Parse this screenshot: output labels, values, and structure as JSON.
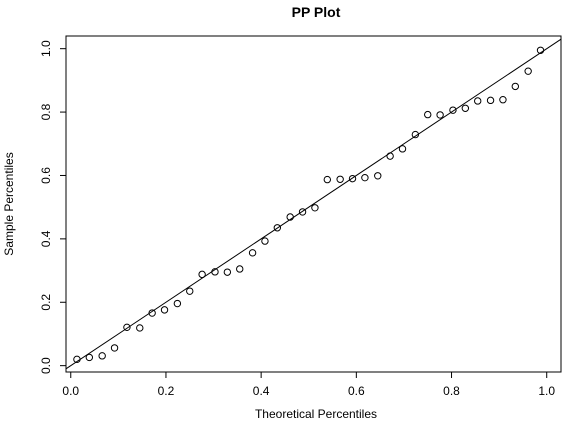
{
  "chart_data": {
    "type": "scatter",
    "title": "PP Plot",
    "xlabel": "Theoretical Percentiles",
    "ylabel": "Sample Percentiles",
    "xlim": [
      -0.01,
      1.03
    ],
    "ylim": [
      -0.02,
      1.04
    ],
    "x_ticks": [
      "0.0",
      "0.2",
      "0.4",
      "0.6",
      "0.8",
      "1.0"
    ],
    "y_ticks": [
      "0.0",
      "0.2",
      "0.4",
      "0.6",
      "0.8",
      "1.0"
    ],
    "grid": false,
    "reference_line": {
      "slope": 1.0,
      "intercept": 0.0
    },
    "points": [
      {
        "x": 0.013,
        "y": 0.02
      },
      {
        "x": 0.039,
        "y": 0.026
      },
      {
        "x": 0.066,
        "y": 0.031
      },
      {
        "x": 0.092,
        "y": 0.056
      },
      {
        "x": 0.118,
        "y": 0.121
      },
      {
        "x": 0.145,
        "y": 0.119
      },
      {
        "x": 0.171,
        "y": 0.166
      },
      {
        "x": 0.197,
        "y": 0.176
      },
      {
        "x": 0.224,
        "y": 0.196
      },
      {
        "x": 0.25,
        "y": 0.235
      },
      {
        "x": 0.276,
        "y": 0.288
      },
      {
        "x": 0.303,
        "y": 0.296
      },
      {
        "x": 0.329,
        "y": 0.295
      },
      {
        "x": 0.355,
        "y": 0.305
      },
      {
        "x": 0.382,
        "y": 0.356
      },
      {
        "x": 0.408,
        "y": 0.393
      },
      {
        "x": 0.434,
        "y": 0.435
      },
      {
        "x": 0.461,
        "y": 0.469
      },
      {
        "x": 0.487,
        "y": 0.485
      },
      {
        "x": 0.513,
        "y": 0.498
      },
      {
        "x": 0.539,
        "y": 0.587
      },
      {
        "x": 0.566,
        "y": 0.588
      },
      {
        "x": 0.592,
        "y": 0.59
      },
      {
        "x": 0.618,
        "y": 0.593
      },
      {
        "x": 0.645,
        "y": 0.599
      },
      {
        "x": 0.671,
        "y": 0.661
      },
      {
        "x": 0.697,
        "y": 0.684
      },
      {
        "x": 0.724,
        "y": 0.729
      },
      {
        "x": 0.75,
        "y": 0.792
      },
      {
        "x": 0.776,
        "y": 0.791
      },
      {
        "x": 0.803,
        "y": 0.806
      },
      {
        "x": 0.829,
        "y": 0.812
      },
      {
        "x": 0.855,
        "y": 0.835
      },
      {
        "x": 0.882,
        "y": 0.837
      },
      {
        "x": 0.908,
        "y": 0.839
      },
      {
        "x": 0.934,
        "y": 0.881
      },
      {
        "x": 0.961,
        "y": 0.929
      },
      {
        "x": 0.987,
        "y": 0.995
      }
    ]
  }
}
